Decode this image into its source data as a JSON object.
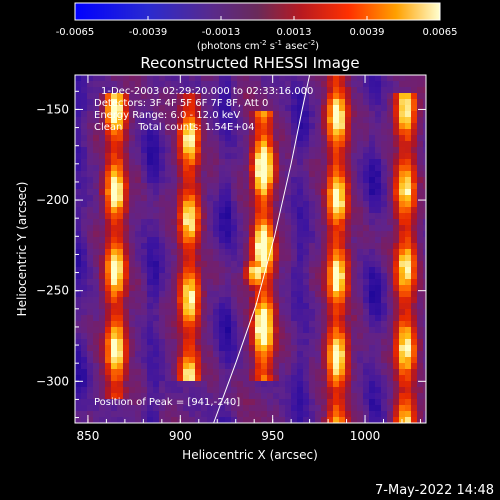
{
  "chart_data": {
    "type": "heatmap",
    "title": "Reconstructed RHESSI Image",
    "xlabel": "Heliocentric X (arcsec)",
    "ylabel": "Heliocentric Y (arcsec)",
    "xlim": [
      843,
      1033
    ],
    "ylim": [
      -323,
      -131
    ],
    "x_ticks": [
      850,
      900,
      950,
      1000
    ],
    "y_ticks": [
      -150,
      -200,
      -250,
      -300
    ],
    "colorbar": {
      "ticks": [
        "-0.0065",
        "-0.0039",
        "-0.0013",
        "0.0013",
        "0.0039",
        "0.0065"
      ],
      "range": [
        -0.0065,
        0.0065
      ],
      "units_prefix": "(photons cm",
      "units_sup1": "-2",
      "units_mid1": " s",
      "units_sup2": "-1",
      "units_mid2": " asec",
      "units_sup3": "-2",
      "units_suffix": ")"
    },
    "annotations": {
      "time_range": "1-Dec-2003 02:29:20.000 to 02:33:16.000",
      "detectors": "Detectors: 3F 4F 5F 6F 7F 8F, Att 0",
      "energy": "Energy Range: 6.0 - 12.0 keV",
      "method": "Clean     Total counts: 1.54E+04",
      "peak": "Position of Peak = [941,-240]"
    },
    "peak": {
      "x": 941,
      "y": -240
    },
    "limb_curve": [
      [
        918,
        -323
      ],
      [
        930,
        -290
      ],
      [
        941,
        -258
      ],
      [
        951,
        -220
      ],
      [
        960,
        -180
      ],
      [
        966,
        -150
      ],
      [
        970,
        -131
      ]
    ],
    "bright_stripes": [
      {
        "x": 865,
        "y_from": -140,
        "y_to": -310,
        "strength": 0.75
      },
      {
        "x": 905,
        "y_from": -140,
        "y_to": -300,
        "strength": 0.7
      },
      {
        "x": 945,
        "y_from": -150,
        "y_to": -300,
        "strength": 0.85
      },
      {
        "x": 985,
        "y_from": -131,
        "y_to": -323,
        "strength": 0.75
      },
      {
        "x": 1022,
        "y_from": -140,
        "y_to": -323,
        "strength": 0.7
      }
    ],
    "dark_stripes": [
      {
        "x": 845
      },
      {
        "x": 885
      },
      {
        "x": 925
      },
      {
        "x": 965
      },
      {
        "x": 1005
      }
    ]
  },
  "timestamp": "7-May-2022 14:48"
}
